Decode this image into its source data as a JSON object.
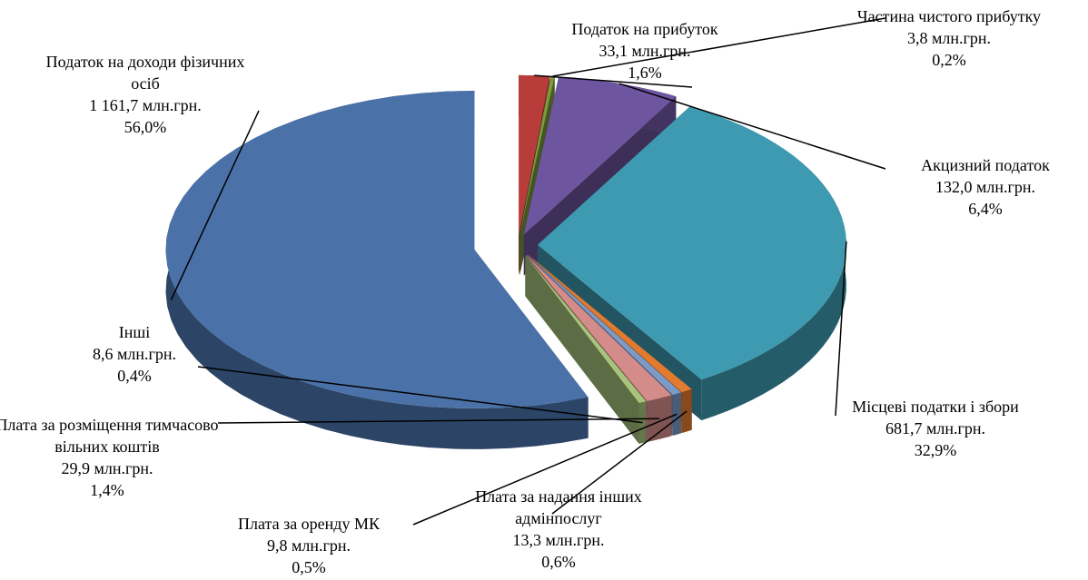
{
  "chart_data": {
    "type": "pie3d",
    "categories": [
      "Податок на прибуток",
      "Частина чистого прибутку",
      "Акцизний податок",
      "Місцеві податки і збори",
      "Плата за надання інших адмінпослуг",
      "Плата за оренду МК",
      "Плата за розміщення тимчасово вільних коштів",
      "Інші",
      "Податок на доходи фізичних осіб"
    ],
    "amount_labels": [
      "33,1 млн.грн.",
      "3,8 млн.грн.",
      "132,0 млн.грн.",
      "681,7 млн.грн.",
      "13,3 млн.грн.",
      "9,8 млн.грн.",
      "29,9 млн.грн.",
      "8,6 млн.грн.",
      "1 161,7 млн.грн."
    ],
    "values": [
      1.6,
      0.2,
      6.4,
      32.9,
      0.6,
      0.5,
      1.4,
      0.4,
      56.0
    ],
    "value_labels": [
      "1,6%",
      "0,2%",
      "6,4%",
      "32,9%",
      "0,6%",
      "0,5%",
      "1,4%",
      "0,4%",
      "56,0%"
    ],
    "colors": [
      "#b83c3a",
      "#7a9a3c",
      "#6e55a0",
      "#3e9ab0",
      "#e07b30",
      "#7d9ac7",
      "#d48c8a",
      "#a8c47c",
      "#4a72a8"
    ]
  }
}
